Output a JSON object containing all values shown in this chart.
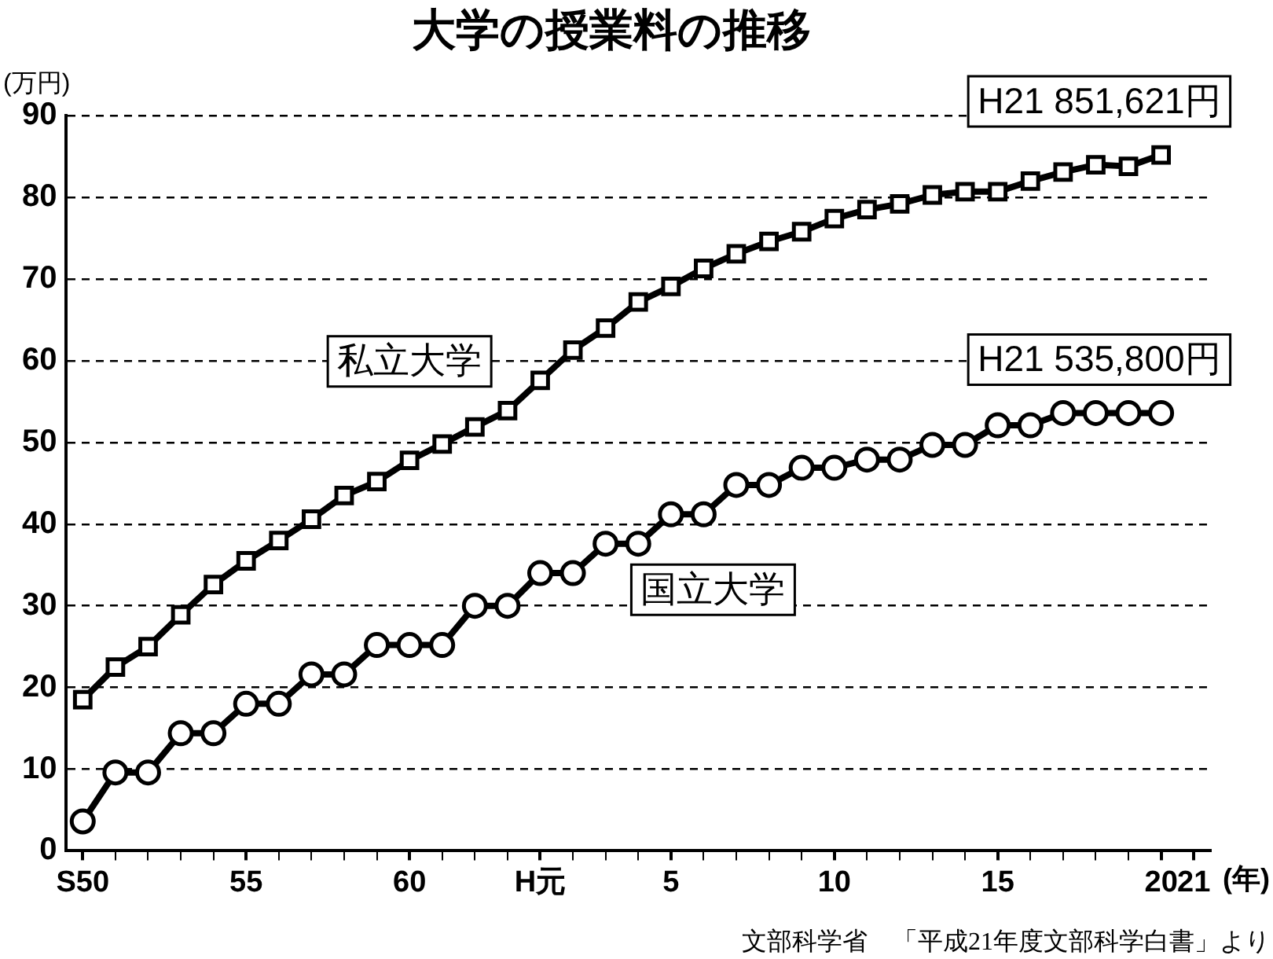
{
  "chart_data": {
    "type": "line",
    "title": "大学の授業料の推移",
    "ylabel": "(万円)",
    "xlabel": "(年)",
    "categories": [
      "S50",
      null,
      null,
      null,
      null,
      "55",
      null,
      null,
      null,
      null,
      "60",
      null,
      null,
      null,
      "H元",
      null,
      null,
      null,
      "5",
      null,
      null,
      null,
      null,
      "10",
      null,
      null,
      null,
      null,
      "15",
      null,
      null,
      null,
      null,
      "20",
      "21"
    ],
    "series": [
      {
        "name": "私立大学",
        "color": "#000000",
        "marker": "square",
        "values": [
          18.5,
          22.5,
          25.0,
          28.9,
          32.6,
          35.5,
          38.0,
          40.6,
          43.5,
          45.2,
          47.8,
          49.8,
          51.9,
          53.9,
          57.6,
          61.3,
          64.0,
          67.2,
          69.1,
          71.3,
          73.1,
          74.6,
          75.8,
          77.4,
          78.5,
          79.2,
          80.3,
          80.7,
          80.7,
          82.0,
          83.1,
          84.0,
          83.8,
          85.2,
          null
        ]
      },
      {
        "name": "国立大学",
        "color": "#000000",
        "marker": "circle",
        "values": [
          3.6,
          9.6,
          9.6,
          14.4,
          14.4,
          18,
          18,
          21.6,
          21.6,
          25.2,
          25.2,
          25.2,
          30,
          30,
          34,
          34,
          37.6,
          37.6,
          41.2,
          41.2,
          44.8,
          44.8,
          46.9,
          46.9,
          47.9,
          47.9,
          49.7,
          49.7,
          52.1,
          52.1,
          53.6,
          53.6,
          53.6,
          53.6,
          null
        ]
      }
    ],
    "ylim": [
      0,
      90
    ],
    "yticks": [
      0,
      10,
      20,
      30,
      40,
      50,
      60,
      70,
      80,
      90
    ],
    "grid": "y",
    "legend": false,
    "line_style": "solid",
    "annotations": [
      {
        "text": "H21 851,621円",
        "x": "20",
        "y": 85.2
      },
      {
        "text": "H21 535,800円",
        "x": "20",
        "y": 53.6
      },
      "文部科学省　「平成21年度文部科学白書」より"
    ]
  }
}
